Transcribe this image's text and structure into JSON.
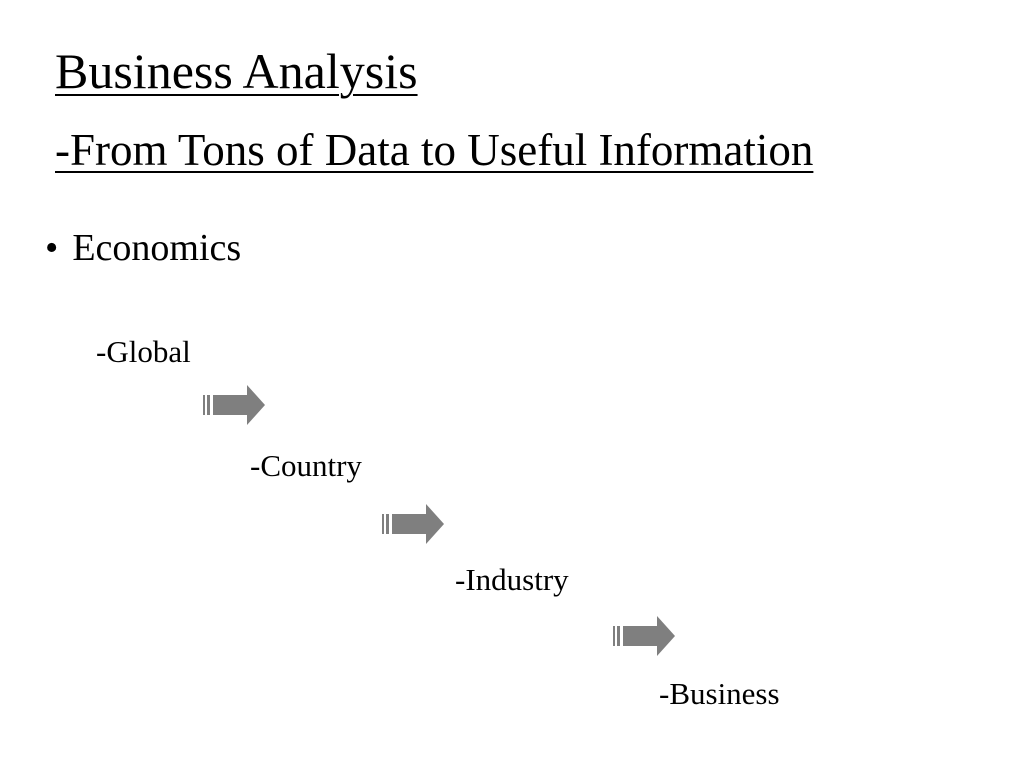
{
  "slide": {
    "title": "Business Analysis",
    "subtitle": "-From Tons of Data to Useful Information",
    "bullet": {
      "marker": "•",
      "text": "Economics"
    },
    "levels": [
      "-Global",
      "-Country",
      "-Industry",
      "-Business"
    ],
    "arrow_icon": "striped-right-arrow",
    "arrow_color": "#7f7f7f"
  }
}
